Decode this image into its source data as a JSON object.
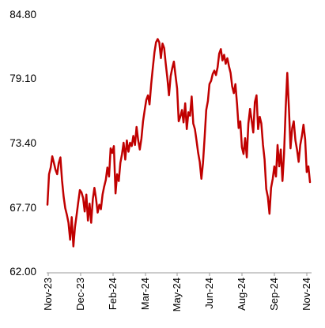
{
  "chart_data": {
    "type": "line",
    "title": "",
    "xlabel": "",
    "ylabel": "",
    "ylim": [
      62.0,
      84.8
    ],
    "yticks": [
      "62.00",
      "67.70",
      "73.40",
      "79.10",
      "84.80"
    ],
    "grid": false,
    "legend": "none",
    "line_color": "#C00000",
    "x_tick_labels": [
      "Nov-23",
      "Dec-23",
      "Feb-24",
      "Mar-24",
      "May-24",
      "Jun-24",
      "Aug-24",
      "Sep-24",
      "Nov-24"
    ],
    "series": [
      {
        "values": [
          67.9,
          70.6,
          71.2,
          72.2,
          71.6,
          71.0,
          70.6,
          71.6,
          72.1,
          70.1,
          68.6,
          67.6,
          67.0,
          66.3,
          64.8,
          66.8,
          64.2,
          65.9,
          67.0,
          68.1,
          69.2,
          69.0,
          68.5,
          67.3,
          68.8,
          66.5,
          68.0,
          66.3,
          68.4,
          69.4,
          68.4,
          67.2,
          67.9,
          67.5,
          68.8,
          69.5,
          70.1,
          71.2,
          70.4,
          72.9,
          72.5,
          73.1,
          68.9,
          70.6,
          70.0,
          71.6,
          72.4,
          73.4,
          71.9,
          73.6,
          72.6,
          73.4,
          73.1,
          74.0,
          73.2,
          74.8,
          73.6,
          72.8,
          73.8,
          75.3,
          76.3,
          77.2,
          77.6,
          76.8,
          78.6,
          80.0,
          81.4,
          82.3,
          82.6,
          82.3,
          80.9,
          82.2,
          81.8,
          80.4,
          79.1,
          77.6,
          79.3,
          80.0,
          80.6,
          79.4,
          78.2,
          75.3,
          75.7,
          76.3,
          75.2,
          76.9,
          74.6,
          76.1,
          75.8,
          77.5,
          75.1,
          74.6,
          73.6,
          72.5,
          71.7,
          70.2,
          71.6,
          73.9,
          76.3,
          77.1,
          78.6,
          78.9,
          79.5,
          79.8,
          79.4,
          80.1,
          81.3,
          81.7,
          80.7,
          81.2,
          80.4,
          80.9,
          80.2,
          79.6,
          78.4,
          77.8,
          78.6,
          76.8,
          74.7,
          75.3,
          73.0,
          72.4,
          73.8,
          72.1,
          75.1,
          76.4,
          75.4,
          74.3,
          77.0,
          77.6,
          74.6,
          75.7,
          75.1,
          73.2,
          71.9,
          69.3,
          68.6,
          67.1,
          69.4,
          70.2,
          71.3,
          70.4,
          73.2,
          71.3,
          72.8,
          70.0,
          72.4,
          76.5,
          79.6,
          76.4,
          72.9,
          74.7,
          75.3,
          73.6,
          72.8,
          71.7,
          73.2,
          74.0,
          75.0,
          73.7,
          70.8,
          71.3,
          69.9
        ]
      }
    ]
  }
}
